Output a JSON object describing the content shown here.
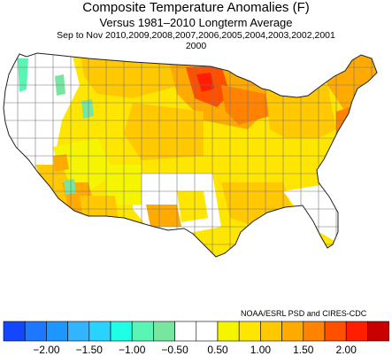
{
  "title": "Composite Temperature Anomalies (F)",
  "subtitle": "Versus 1981–2010 Longterm Average",
  "season_line": "Sep to Nov  2010,2009,2008,2007,2006,2005,2004,2003,2002,2001",
  "year_line": "2000",
  "credit": "NOAA/ESRL PSD and CIRES-CDC",
  "legend": {
    "colors": [
      "#1446ff",
      "#1e78ff",
      "#1e96ff",
      "#32b4ff",
      "#2ad2ff",
      "#1effe6",
      "#5af5b4",
      "#78e6a0",
      "#ffffff",
      "#ffffff",
      "#f5f500",
      "#ffe600",
      "#ffc800",
      "#ffaa00",
      "#ff8200",
      "#ff5000",
      "#ff1e00",
      "#c80000"
    ],
    "labels": [
      "−2.00",
      "−1.50",
      "−1.00",
      "−0.50",
      "0.50",
      "1.00",
      "1.50",
      "2.00"
    ]
  }
}
